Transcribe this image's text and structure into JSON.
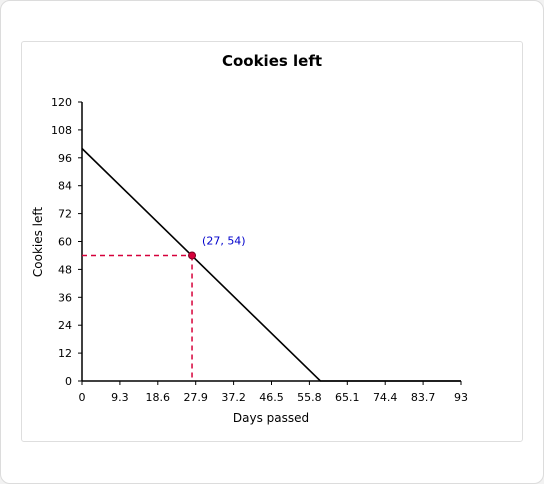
{
  "chart_data": {
    "type": "line",
    "title": "Cookies left",
    "xlabel": "Days passed",
    "ylabel": "Cookies left",
    "xlim": [
      0,
      93
    ],
    "ylim": [
      0,
      120
    ],
    "x_ticks": [
      "0",
      "9.3",
      "18.6",
      "27.9",
      "37.2",
      "46.5",
      "55.8",
      "65.1",
      "74.4",
      "83.7",
      "93"
    ],
    "y_ticks": [
      "0",
      "12",
      "24",
      "36",
      "48",
      "60",
      "72",
      "84",
      "96",
      "108",
      "120"
    ],
    "grid": false,
    "series": [
      {
        "x": [
          0,
          58.5,
          93
        ],
        "y": [
          100,
          0,
          0
        ],
        "color": "#000000"
      }
    ],
    "highlight_point": {
      "x": 27,
      "y": 54,
      "label": "(27, 54)",
      "color": "#d6003a",
      "label_color": "#0000cc"
    }
  }
}
